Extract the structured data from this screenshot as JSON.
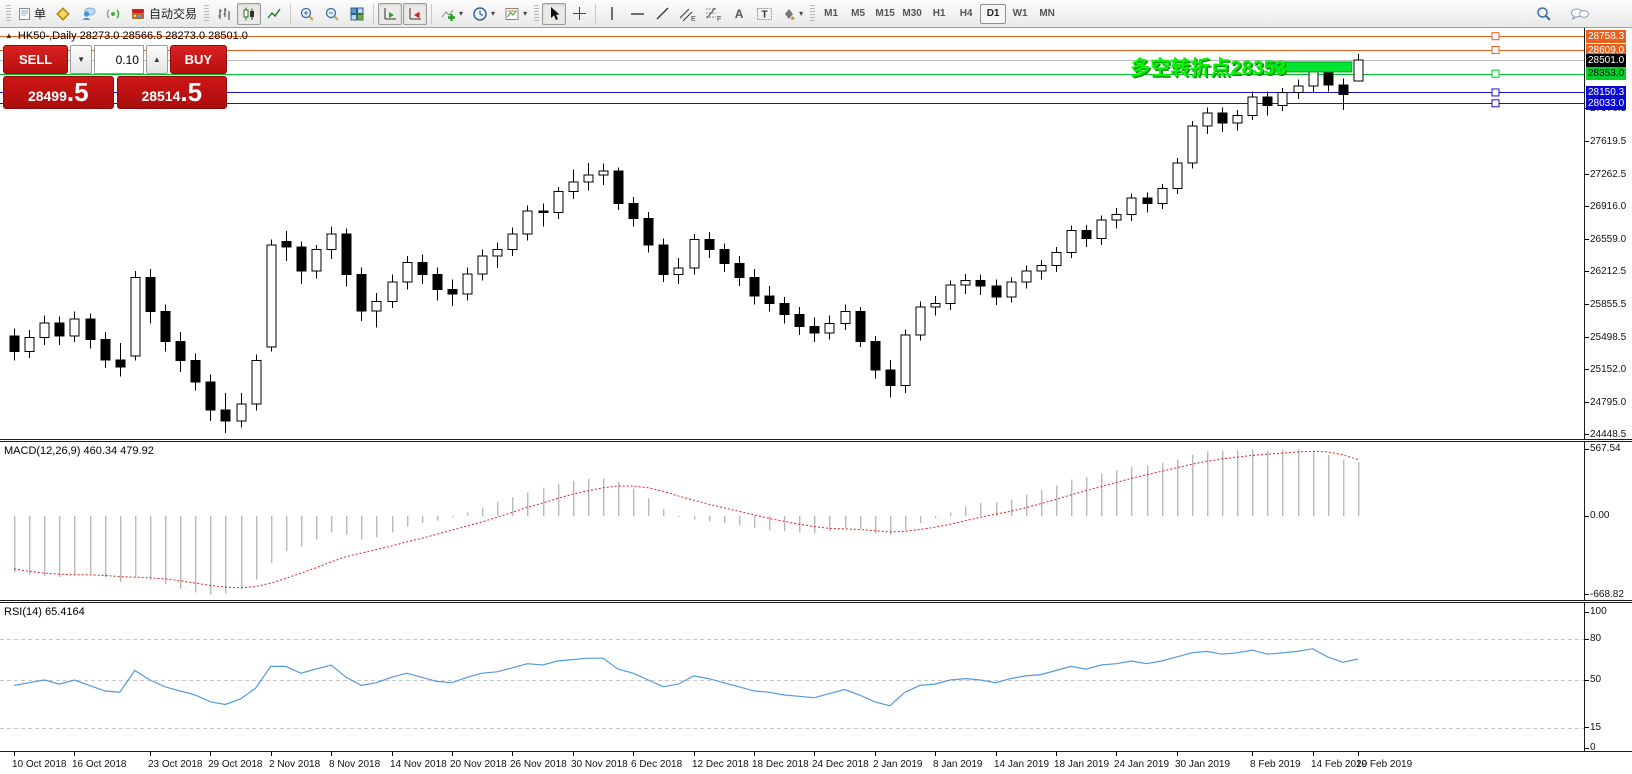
{
  "window": {
    "title_row": "HK50-,Daily 28273.0 28566.5 28273.0 28501.0"
  },
  "toolbar": {
    "order_label": "单",
    "autotrading_label": "自动交易",
    "timeframes": [
      "M1",
      "M5",
      "M15",
      "M30",
      "H1",
      "H4",
      "D1",
      "W1",
      "MN"
    ],
    "active_timeframe": "D1",
    "icons": [
      "new-order",
      "gold-market",
      "community",
      "signals",
      "autotrading",
      "bar-chart",
      "candlestick-chart",
      "line-chart",
      "zoom-in",
      "zoom-out",
      "tile-windows",
      "auto-scroll",
      "chart-shift",
      "indicators-add",
      "periods-clock",
      "templates",
      "cursor",
      "crosshair",
      "vertical-line",
      "horizontal-line",
      "trend-line",
      "equidistant-channel",
      "fibonacci-retracement",
      "text",
      "text-label",
      "arrows",
      "search",
      "chat"
    ]
  },
  "trade_panel": {
    "sell_label": "SELL",
    "buy_label": "BUY",
    "volume": "0.10",
    "sell_price_main": "28499",
    "sell_price_frac": ".5",
    "buy_price_main": "28514",
    "buy_price_frac": ".5"
  },
  "chart_data": {
    "type": "candlestick",
    "symbol": "HK50-",
    "period": "Daily",
    "title_ohlc": {
      "open": 28273.0,
      "high": 28566.5,
      "low": 28273.0,
      "close": 28501.0
    },
    "y_ticks": [
      27976.5,
      27619.5,
      27262.5,
      26916.0,
      26559.0,
      26212.5,
      25855.5,
      25498.5,
      25152.0,
      24795.0,
      24448.5
    ],
    "hlines": [
      {
        "price": 28758.3,
        "label": "28758.3",
        "color": "#e8611c",
        "label_bg": "#e8611c",
        "label_fg": "#ffffff",
        "handle": true,
        "current": false
      },
      {
        "price": 28609.0,
        "label": "28609.0",
        "color": "#e8611c",
        "label_bg": "#e8611c",
        "label_fg": "#ffffff",
        "handle": true,
        "current": false
      },
      {
        "price": 28501.0,
        "label": "28501.0",
        "color": "#b9b9b9",
        "label_bg": "#000000",
        "label_fg": "#ffffff",
        "handle": false,
        "current": true
      },
      {
        "price": 28353.0,
        "label": "28353.0",
        "color": "#00c32a",
        "label_bg": "#00d02c",
        "label_fg": "#000000",
        "handle": true,
        "current": false
      },
      {
        "price": 28150.3,
        "label": "28150.3",
        "color": "#1414cc",
        "label_bg": "#0909d2",
        "label_fg": "#ffffff",
        "handle": true,
        "current": false
      },
      {
        "price": 28033.0,
        "label": "28033.0",
        "color": "#1414cc",
        "label_bg": "#0909d2",
        "label_fg": "#ffffff",
        "handle": true,
        "current": false
      }
    ],
    "annotation": {
      "text": "多空转折点28353",
      "color": "#03f503",
      "shadow": "#0b8f0b",
      "anchor_price": 28420,
      "anchor_x": 1286,
      "rect": {
        "i1": 83.2,
        "i2": 88.6,
        "p_top": 28480,
        "p_bot": 28372,
        "color": "#00e532"
      }
    },
    "x_labels": [
      {
        "i": 0,
        "t": "10 Oct 2018"
      },
      {
        "i": 4,
        "t": "16 Oct 2018"
      },
      {
        "i": 9,
        "t": "23 Oct 2018"
      },
      {
        "i": 13,
        "t": "29 Oct 2018"
      },
      {
        "i": 17,
        "t": "2 Nov 2018"
      },
      {
        "i": 21,
        "t": "8 Nov 2018"
      },
      {
        "i": 25,
        "t": "14 Nov 2018"
      },
      {
        "i": 29,
        "t": "20 Nov 2018"
      },
      {
        "i": 33,
        "t": "26 Nov 2018"
      },
      {
        "i": 37,
        "t": "30 Nov 2018"
      },
      {
        "i": 41,
        "t": "6 Dec 2018"
      },
      {
        "i": 45,
        "t": "12 Dec 2018"
      },
      {
        "i": 49,
        "t": "18 Dec 2018"
      },
      {
        "i": 53,
        "t": "24 Dec 2018"
      },
      {
        "i": 57,
        "t": "2 Jan 2019"
      },
      {
        "i": 61,
        "t": "8 Jan 2019"
      },
      {
        "i": 65,
        "t": "14 Jan 2019"
      },
      {
        "i": 69,
        "t": "18 Jan 2019"
      },
      {
        "i": 73,
        "t": "24 Jan 2019"
      },
      {
        "i": 77,
        "t": "30 Jan 2019"
      },
      {
        "i": 82,
        "t": "8 Feb 2019"
      },
      {
        "i": 86,
        "t": "14 Feb 2019"
      },
      {
        "i": 89,
        "t": "20 Feb 2019"
      }
    ],
    "candles": [
      [
        25520,
        25600,
        25250,
        25350
      ],
      [
        25350,
        25580,
        25280,
        25500
      ],
      [
        25500,
        25740,
        25420,
        25660
      ],
      [
        25660,
        25730,
        25420,
        25520
      ],
      [
        25520,
        25780,
        25450,
        25700
      ],
      [
        25700,
        25760,
        25380,
        25480
      ],
      [
        25480,
        25560,
        25170,
        25260
      ],
      [
        25260,
        25440,
        25080,
        25180
      ],
      [
        25300,
        26220,
        25250,
        26150
      ],
      [
        26150,
        26240,
        25650,
        25780
      ],
      [
        25780,
        25860,
        25350,
        25460
      ],
      [
        25460,
        25560,
        25130,
        25250
      ],
      [
        25250,
        25330,
        24930,
        25020
      ],
      [
        25020,
        25100,
        24600,
        24720
      ],
      [
        24720,
        24900,
        24470,
        24600
      ],
      [
        24600,
        24900,
        24530,
        24780
      ],
      [
        24780,
        25320,
        24710,
        25250
      ],
      [
        25400,
        26560,
        25350,
        26500
      ],
      [
        26540,
        26650,
        26330,
        26480
      ],
      [
        26480,
        26540,
        26080,
        26220
      ],
      [
        26220,
        26500,
        26140,
        26450
      ],
      [
        26450,
        26700,
        26350,
        26620
      ],
      [
        26620,
        26680,
        26050,
        26180
      ],
      [
        26180,
        26260,
        25680,
        25790
      ],
      [
        25790,
        25980,
        25610,
        25890
      ],
      [
        25890,
        26180,
        25820,
        26100
      ],
      [
        26100,
        26380,
        26020,
        26310
      ],
      [
        26310,
        26400,
        26080,
        26180
      ],
      [
        26180,
        26260,
        25900,
        26020
      ],
      [
        26020,
        26130,
        25840,
        25970
      ],
      [
        25970,
        26260,
        25900,
        26190
      ],
      [
        26190,
        26450,
        26120,
        26380
      ],
      [
        26380,
        26530,
        26250,
        26450
      ],
      [
        26450,
        26690,
        26380,
        26620
      ],
      [
        26620,
        26930,
        26550,
        26870
      ],
      [
        26870,
        26950,
        26700,
        26850
      ],
      [
        26850,
        27130,
        26780,
        27080
      ],
      [
        27080,
        27320,
        27000,
        27180
      ],
      [
        27180,
        27390,
        27090,
        27260
      ],
      [
        27260,
        27380,
        27150,
        27300
      ],
      [
        27300,
        27340,
        26880,
        26950
      ],
      [
        26950,
        27020,
        26700,
        26790
      ],
      [
        26790,
        26860,
        26420,
        26500
      ],
      [
        26500,
        26570,
        26100,
        26180
      ],
      [
        26180,
        26360,
        26080,
        26250
      ],
      [
        26250,
        26620,
        26180,
        26560
      ],
      [
        26560,
        26640,
        26360,
        26450
      ],
      [
        26450,
        26520,
        26210,
        26300
      ],
      [
        26300,
        26380,
        26060,
        26150
      ],
      [
        26150,
        26240,
        25860,
        25950
      ],
      [
        25950,
        26060,
        25780,
        25870
      ],
      [
        25870,
        25940,
        25650,
        25750
      ],
      [
        25750,
        25830,
        25530,
        25620
      ],
      [
        25620,
        25720,
        25450,
        25550
      ],
      [
        25550,
        25740,
        25480,
        25650
      ],
      [
        25650,
        25860,
        25580,
        25780
      ],
      [
        25780,
        25830,
        25400,
        25460
      ],
      [
        25460,
        25520,
        25060,
        25150
      ],
      [
        25150,
        25260,
        24850,
        24980
      ],
      [
        24980,
        25590,
        24900,
        25530
      ],
      [
        25530,
        25890,
        25470,
        25830
      ],
      [
        25830,
        25950,
        25740,
        25870
      ],
      [
        25870,
        26120,
        25800,
        26070
      ],
      [
        26070,
        26190,
        25970,
        26120
      ],
      [
        26120,
        26180,
        25960,
        26060
      ],
      [
        26060,
        26130,
        25850,
        25940
      ],
      [
        25940,
        26150,
        25880,
        26100
      ],
      [
        26100,
        26280,
        26030,
        26220
      ],
      [
        26220,
        26340,
        26130,
        26280
      ],
      [
        26280,
        26480,
        26210,
        26420
      ],
      [
        26420,
        26710,
        26360,
        26660
      ],
      [
        26660,
        26720,
        26480,
        26570
      ],
      [
        26570,
        26820,
        26500,
        26770
      ],
      [
        26770,
        26900,
        26680,
        26830
      ],
      [
        26830,
        27060,
        26760,
        27010
      ],
      [
        27010,
        27070,
        26850,
        26950
      ],
      [
        26950,
        27160,
        26890,
        27110
      ],
      [
        27110,
        27440,
        27050,
        27390
      ],
      [
        27390,
        27840,
        27330,
        27790
      ],
      [
        27790,
        27990,
        27700,
        27930
      ],
      [
        27930,
        27990,
        27720,
        27820
      ],
      [
        27820,
        27960,
        27740,
        27900
      ],
      [
        27900,
        28160,
        27850,
        28100
      ],
      [
        28100,
        28160,
        27900,
        28010
      ],
      [
        28010,
        28200,
        27950,
        28150
      ],
      [
        28150,
        28290,
        28080,
        28220
      ],
      [
        28220,
        28440,
        28150,
        28390
      ],
      [
        28390,
        28450,
        28160,
        28230
      ],
      [
        28230,
        28300,
        27960,
        28130
      ],
      [
        28273,
        28566.5,
        28273,
        28501
      ]
    ],
    "macd": {
      "label": "MACD(12,26,9) 460.34 479.92",
      "ticks": [
        {
          "v": 567.54,
          "t": "567.54"
        },
        {
          "v": 0,
          "t": "0.00"
        },
        {
          "v": -668.82,
          "t": "-668.82"
        }
      ],
      "hist_color": "#b9b9b9",
      "signal_color": "#e02020",
      "hist": [
        -480,
        -500,
        -510,
        -520,
        -500,
        -490,
        -520,
        -560,
        -520,
        -540,
        -580,
        -620,
        -650,
        -668,
        -660,
        -620,
        -540,
        -400,
        -300,
        -260,
        -200,
        -140,
        -160,
        -200,
        -180,
        -140,
        -90,
        -60,
        -40,
        -10,
        30,
        70,
        120,
        160,
        200,
        240,
        270,
        300,
        315,
        320,
        290,
        230,
        150,
        60,
        0,
        -30,
        -45,
        -60,
        -80,
        -100,
        -120,
        -130,
        -140,
        -150,
        -130,
        -100,
        -110,
        -150,
        -160,
        -120,
        -60,
        -20,
        30,
        80,
        110,
        120,
        140,
        180,
        220,
        260,
        310,
        330,
        360,
        390,
        420,
        430,
        450,
        480,
        520,
        550,
        555,
        560,
        565,
        555,
        560,
        567.54,
        555,
        520,
        480,
        460.34
      ],
      "signal": [
        -450,
        -470,
        -485,
        -495,
        -500,
        -500,
        -505,
        -515,
        -520,
        -525,
        -535,
        -550,
        -570,
        -590,
        -605,
        -610,
        -600,
        -570,
        -530,
        -485,
        -440,
        -390,
        -345,
        -315,
        -285,
        -255,
        -220,
        -190,
        -155,
        -120,
        -85,
        -50,
        -10,
        30,
        75,
        110,
        150,
        185,
        215,
        240,
        255,
        255,
        240,
        210,
        170,
        135,
        100,
        70,
        40,
        10,
        -20,
        -45,
        -70,
        -90,
        -105,
        -110,
        -115,
        -125,
        -135,
        -130,
        -115,
        -95,
        -70,
        -40,
        -10,
        15,
        40,
        70,
        105,
        140,
        180,
        215,
        250,
        285,
        320,
        350,
        380,
        410,
        440,
        465,
        485,
        500,
        515,
        525,
        535,
        545,
        550,
        545,
        520,
        479.92
      ]
    },
    "rsi": {
      "label": "RSI(14) 65.4164",
      "ticks": [
        {
          "v": 100,
          "t": "100"
        },
        {
          "v": 80,
          "t": "80"
        },
        {
          "v": 50,
          "t": "50"
        },
        {
          "v": 15,
          "t": "15"
        },
        {
          "v": 0,
          "t": "0"
        }
      ],
      "levels": [
        80,
        50,
        15
      ],
      "line_color": "#559ade",
      "values": [
        46,
        48,
        50,
        47,
        50,
        46,
        42,
        41,
        57,
        50,
        45,
        42,
        39,
        34,
        32,
        36,
        44,
        60,
        60,
        55,
        58,
        61,
        52,
        46,
        48,
        52,
        55,
        52,
        49,
        48,
        52,
        55,
        56,
        59,
        62,
        61,
        64,
        65,
        66,
        66,
        58,
        55,
        50,
        45,
        47,
        53,
        51,
        48,
        45,
        42,
        41,
        39,
        38,
        37,
        40,
        43,
        39,
        34,
        31,
        41,
        46,
        47,
        50,
        51,
        50,
        48,
        51,
        53,
        54,
        57,
        60,
        58,
        61,
        62,
        64,
        62,
        64,
        67,
        70,
        71,
        69,
        70,
        72,
        69,
        70,
        71,
        73,
        67,
        63,
        65.42
      ]
    }
  }
}
